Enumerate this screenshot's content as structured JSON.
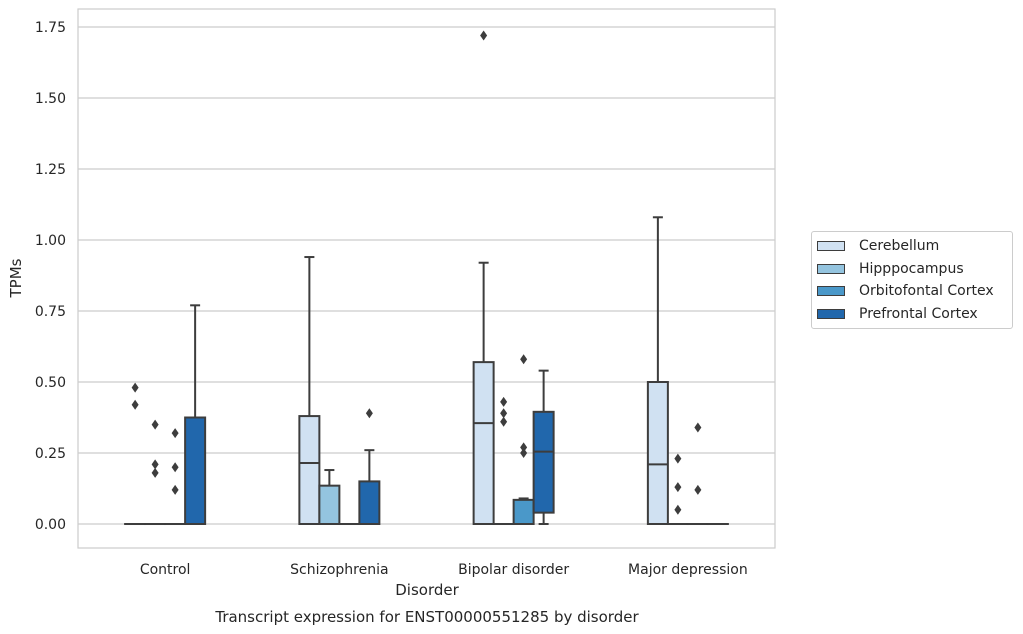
{
  "chart_data": {
    "type": "box",
    "title": "Transcript expression for ENST00000551285 by disorder",
    "xlabel": "Disorder",
    "ylabel": "TPMs",
    "ylim": [
      -0.085,
      1.81
    ],
    "yticks": [
      "0.00",
      "0.25",
      "0.50",
      "0.75",
      "1.00",
      "1.25",
      "1.50",
      "1.75"
    ],
    "ytick_values": [
      0,
      0.25,
      0.5,
      0.75,
      1.0,
      1.25,
      1.5,
      1.75
    ],
    "grid": true,
    "legend_position": "right",
    "categories": [
      "Control",
      "Schizophrenia",
      "Bipolar disorder",
      "Major depression"
    ],
    "series": [
      {
        "name": "Cerebellum",
        "color": "#d0e1f2",
        "boxes": [
          {
            "q1": 0,
            "median": 0,
            "q3": 0,
            "whisker_low": 0,
            "whisker_high": 0,
            "outliers": [
              0.48,
              0.42
            ]
          },
          {
            "q1": 0,
            "median": 0.215,
            "q3": 0.38,
            "whisker_low": 0,
            "whisker_high": 0.94,
            "outliers": []
          },
          {
            "q1": 0,
            "median": 0.355,
            "q3": 0.57,
            "whisker_low": 0,
            "whisker_high": 0.92,
            "outliers": [
              1.72
            ]
          },
          {
            "q1": 0,
            "median": 0.21,
            "q3": 0.5,
            "whisker_low": 0,
            "whisker_high": 1.08,
            "outliers": []
          }
        ]
      },
      {
        "name": "Hipppocampus",
        "color": "#94c4df",
        "boxes": [
          {
            "q1": 0,
            "median": 0,
            "q3": 0,
            "whisker_low": 0,
            "whisker_high": 0,
            "outliers": [
              0.35,
              0.21,
              0.18
            ]
          },
          {
            "q1": 0,
            "median": 0,
            "q3": 0.135,
            "whisker_low": 0,
            "whisker_high": 0.19,
            "outliers": []
          },
          {
            "q1": 0,
            "median": 0,
            "q3": 0,
            "whisker_low": 0,
            "whisker_high": 0,
            "outliers": [
              0.43,
              0.39,
              0.36
            ]
          },
          {
            "q1": 0,
            "median": 0,
            "q3": 0,
            "whisker_low": 0,
            "whisker_high": 0,
            "outliers": [
              0.23,
              0.13,
              0.05
            ]
          }
        ]
      },
      {
        "name": "Orbitofontal Cortex",
        "color": "#4a98c9",
        "boxes": [
          {
            "q1": 0,
            "median": 0,
            "q3": 0,
            "whisker_low": 0,
            "whisker_high": 0,
            "outliers": [
              0.32,
              0.2,
              0.12
            ]
          },
          {
            "q1": 0,
            "median": 0,
            "q3": 0,
            "whisker_low": 0,
            "whisker_high": 0,
            "outliers": []
          },
          {
            "q1": 0,
            "median": 0,
            "q3": 0.085,
            "whisker_low": 0,
            "whisker_high": 0.09,
            "outliers": [
              0.58,
              0.27,
              0.25
            ]
          },
          {
            "q1": 0,
            "median": 0,
            "q3": 0,
            "whisker_low": 0,
            "whisker_high": 0,
            "outliers": [
              0.34,
              0.12
            ]
          }
        ]
      },
      {
        "name": "Prefrontal Cortex",
        "color": "#2167ac",
        "boxes": [
          {
            "q1": 0,
            "median": 0,
            "q3": 0.375,
            "whisker_low": 0,
            "whisker_high": 0.77,
            "outliers": []
          },
          {
            "q1": 0,
            "median": 0,
            "q3": 0.15,
            "whisker_low": 0,
            "whisker_high": 0.26,
            "outliers": [
              0.39
            ]
          },
          {
            "q1": 0.04,
            "median": 0.255,
            "q3": 0.395,
            "whisker_low": 0,
            "whisker_high": 0.54,
            "outliers": []
          },
          {
            "q1": 0,
            "median": 0,
            "q3": 0,
            "whisker_low": 0,
            "whisker_high": 0,
            "outliers": []
          }
        ]
      }
    ]
  }
}
